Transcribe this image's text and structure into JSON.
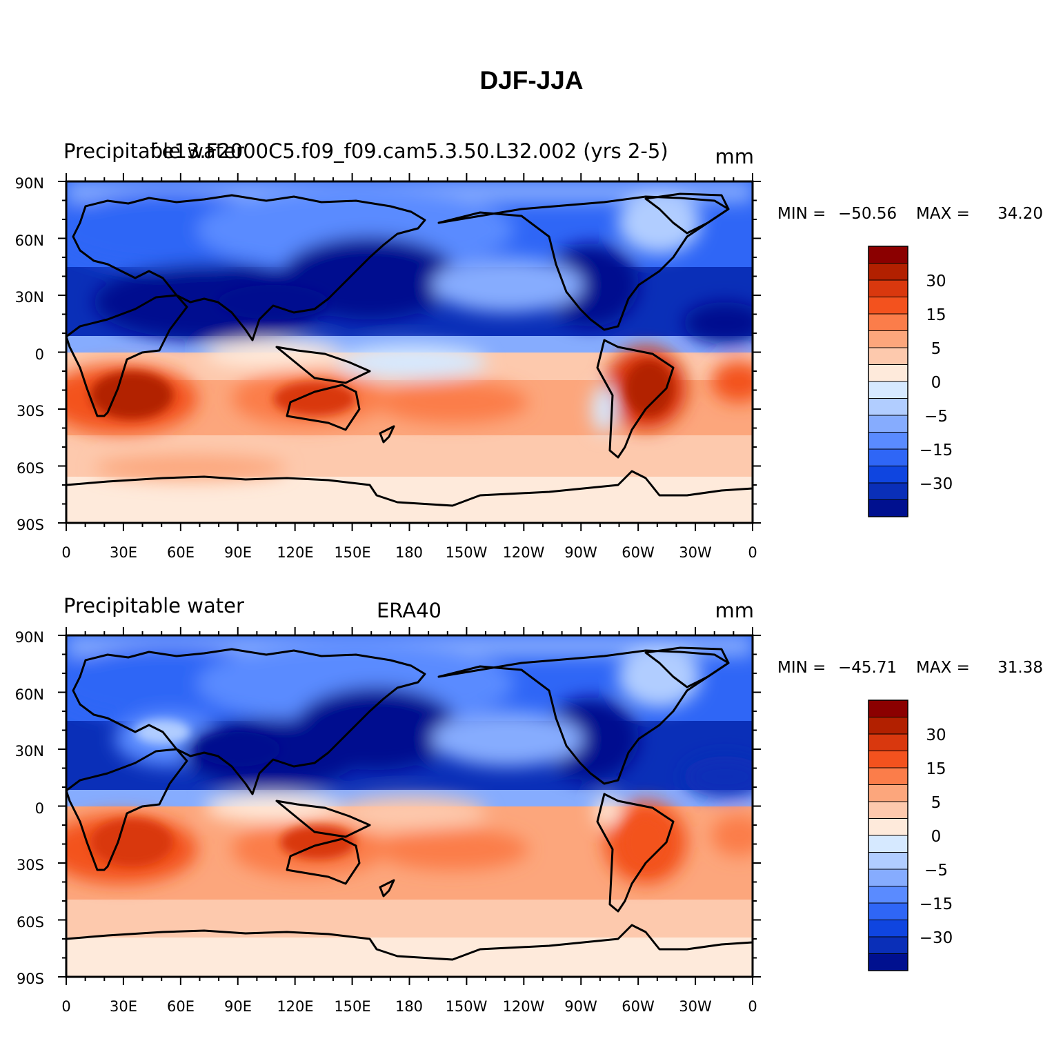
{
  "title": "DJF-JJA",
  "panels": [
    {
      "left_label": "Precipitable water",
      "center_label": "f.e13.F2000C5.f09_f09.cam5.3.50.L32.002 (yrs 2-5)",
      "units": "mm",
      "stats": {
        "min_label": "MIN =",
        "min": "−50.56",
        "max_label": "MAX =",
        "max": "34.20"
      }
    },
    {
      "left_label": "Precipitable water",
      "center_label": "ERA40",
      "units": "mm",
      "stats": {
        "min_label": "MIN =",
        "min": "−45.71",
        "max_label": "MAX =",
        "max": "31.38"
      }
    }
  ],
  "axes": {
    "lat_ticks": [
      "90N",
      "60N",
      "30N",
      "0",
      "30S",
      "60S",
      "90S"
    ],
    "lon_ticks": [
      "0",
      "30E",
      "60E",
      "90E",
      "120E",
      "150E",
      "180",
      "150W",
      "120W",
      "90W",
      "60W",
      "30W",
      "0"
    ]
  },
  "colorbar": {
    "colors": [
      "#8b0000",
      "#b22000",
      "#d9380e",
      "#f3521e",
      "#fb7d4a",
      "#fca67c",
      "#fdc9ad",
      "#feeadb",
      "#d6e9ff",
      "#b1cdff",
      "#86acfe",
      "#5a8bff",
      "#2f66f6",
      "#0f45e0",
      "#0a2fb8",
      "#00108f"
    ],
    "labels": [
      "30",
      "15",
      "5",
      "0",
      "−5",
      "−15",
      "−30"
    ]
  }
}
